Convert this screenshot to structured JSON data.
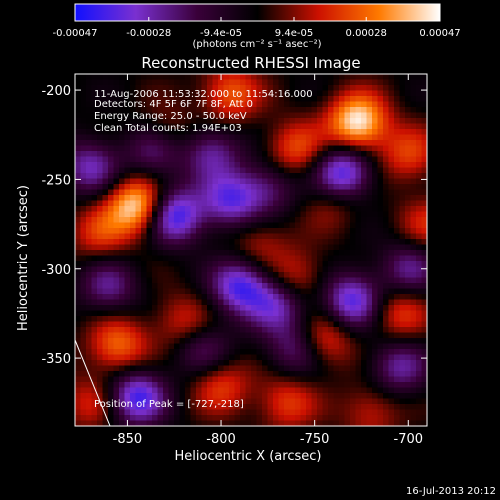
{
  "chart_data": {
    "type": "heatmap",
    "title": "Reconstructed RHESSI Image",
    "xlabel": "Heliocentric X (arcsec)",
    "ylabel": "Heliocentric Y (arcsec)",
    "xlim": [
      -878,
      -690
    ],
    "ylim": [
      -388,
      -191
    ],
    "xticks": [
      -850,
      -800,
      -750,
      -700
    ],
    "xtick_labels": [
      "-850",
      "-800",
      "-750",
      "-700"
    ],
    "yticks": [
      -350,
      -300,
      -250,
      -200
    ],
    "ytick_labels": [
      "-350",
      "-300",
      "-250",
      "-200"
    ],
    "colorbar": {
      "min": -0.00047,
      "max": 0.00047,
      "ticks": [
        -0.00047,
        -0.00028,
        -9.4e-05,
        9.4e-05,
        0.00028,
        0.00047
      ],
      "tick_labels": [
        "-0.00047",
        "-0.00028",
        "-9.4e-05",
        "9.4e-05",
        "0.00028",
        "0.00047"
      ],
      "unit_label": "(photons cm⁻² s⁻¹ asec⁻²)",
      "colors": [
        "#1010ff",
        "#7a30d0",
        "#3a003a",
        "#000000",
        "#cc1000",
        "#ff7a00",
        "#ffffff"
      ]
    },
    "sources": [
      {
        "x": -727,
        "y": -218,
        "v": 1.0
      },
      {
        "x": -845,
        "y": -265,
        "v": 0.95
      },
      {
        "x": -795,
        "y": -202,
        "v": 0.55
      },
      {
        "x": -760,
        "y": -233,
        "v": 0.5
      },
      {
        "x": -700,
        "y": -236,
        "v": 0.45
      },
      {
        "x": -830,
        "y": -225,
        "v": 0.4
      },
      {
        "x": -865,
        "y": -280,
        "v": 0.4
      },
      {
        "x": -855,
        "y": -343,
        "v": 0.6
      },
      {
        "x": -820,
        "y": -330,
        "v": 0.4
      },
      {
        "x": -800,
        "y": -365,
        "v": 0.45
      },
      {
        "x": -760,
        "y": -305,
        "v": 0.4
      },
      {
        "x": -745,
        "y": -340,
        "v": 0.5
      },
      {
        "x": -705,
        "y": -325,
        "v": 0.45
      },
      {
        "x": -765,
        "y": -375,
        "v": 0.45
      },
      {
        "x": -720,
        "y": -380,
        "v": 0.35
      },
      {
        "x": -870,
        "y": -375,
        "v": 0.35
      },
      {
        "x": -690,
        "y": -275,
        "v": 0.35
      },
      {
        "x": -740,
        "y": -262,
        "v": 0.3
      },
      {
        "x": -780,
        "y": -285,
        "v": 0.3
      },
      {
        "x": -835,
        "y": -233,
        "v": -0.6
      },
      {
        "x": -825,
        "y": -270,
        "v": -0.9
      },
      {
        "x": -795,
        "y": -262,
        "v": -0.7
      },
      {
        "x": -790,
        "y": -310,
        "v": -0.8
      },
      {
        "x": -735,
        "y": -247,
        "v": -0.9
      },
      {
        "x": -730,
        "y": -318,
        "v": -0.8
      },
      {
        "x": -760,
        "y": -345,
        "v": -0.5
      },
      {
        "x": -845,
        "y": -372,
        "v": -0.85
      },
      {
        "x": -770,
        "y": -320,
        "v": -0.6
      },
      {
        "x": -870,
        "y": -243,
        "v": -0.6
      },
      {
        "x": -805,
        "y": -235,
        "v": -0.55
      },
      {
        "x": -705,
        "y": -355,
        "v": -0.55
      },
      {
        "x": -700,
        "y": -300,
        "v": -0.5
      },
      {
        "x": -810,
        "y": -345,
        "v": -0.45
      },
      {
        "x": -775,
        "y": -255,
        "v": -0.45
      },
      {
        "x": -860,
        "y": -310,
        "v": -0.5
      }
    ],
    "annotations": [
      "11-Aug-2006 11:53:32.000 to 11:54:16.000",
      "Detectors: 4F 5F 6F 7F 8F, Att 0",
      "Energy Range: 25.0 - 50.0 keV",
      "Clean     Total counts: 1.94E+03"
    ],
    "peak_label": "Position of Peak = [-727,-218]",
    "timestamp": "16-Jul-2013 20:12"
  }
}
